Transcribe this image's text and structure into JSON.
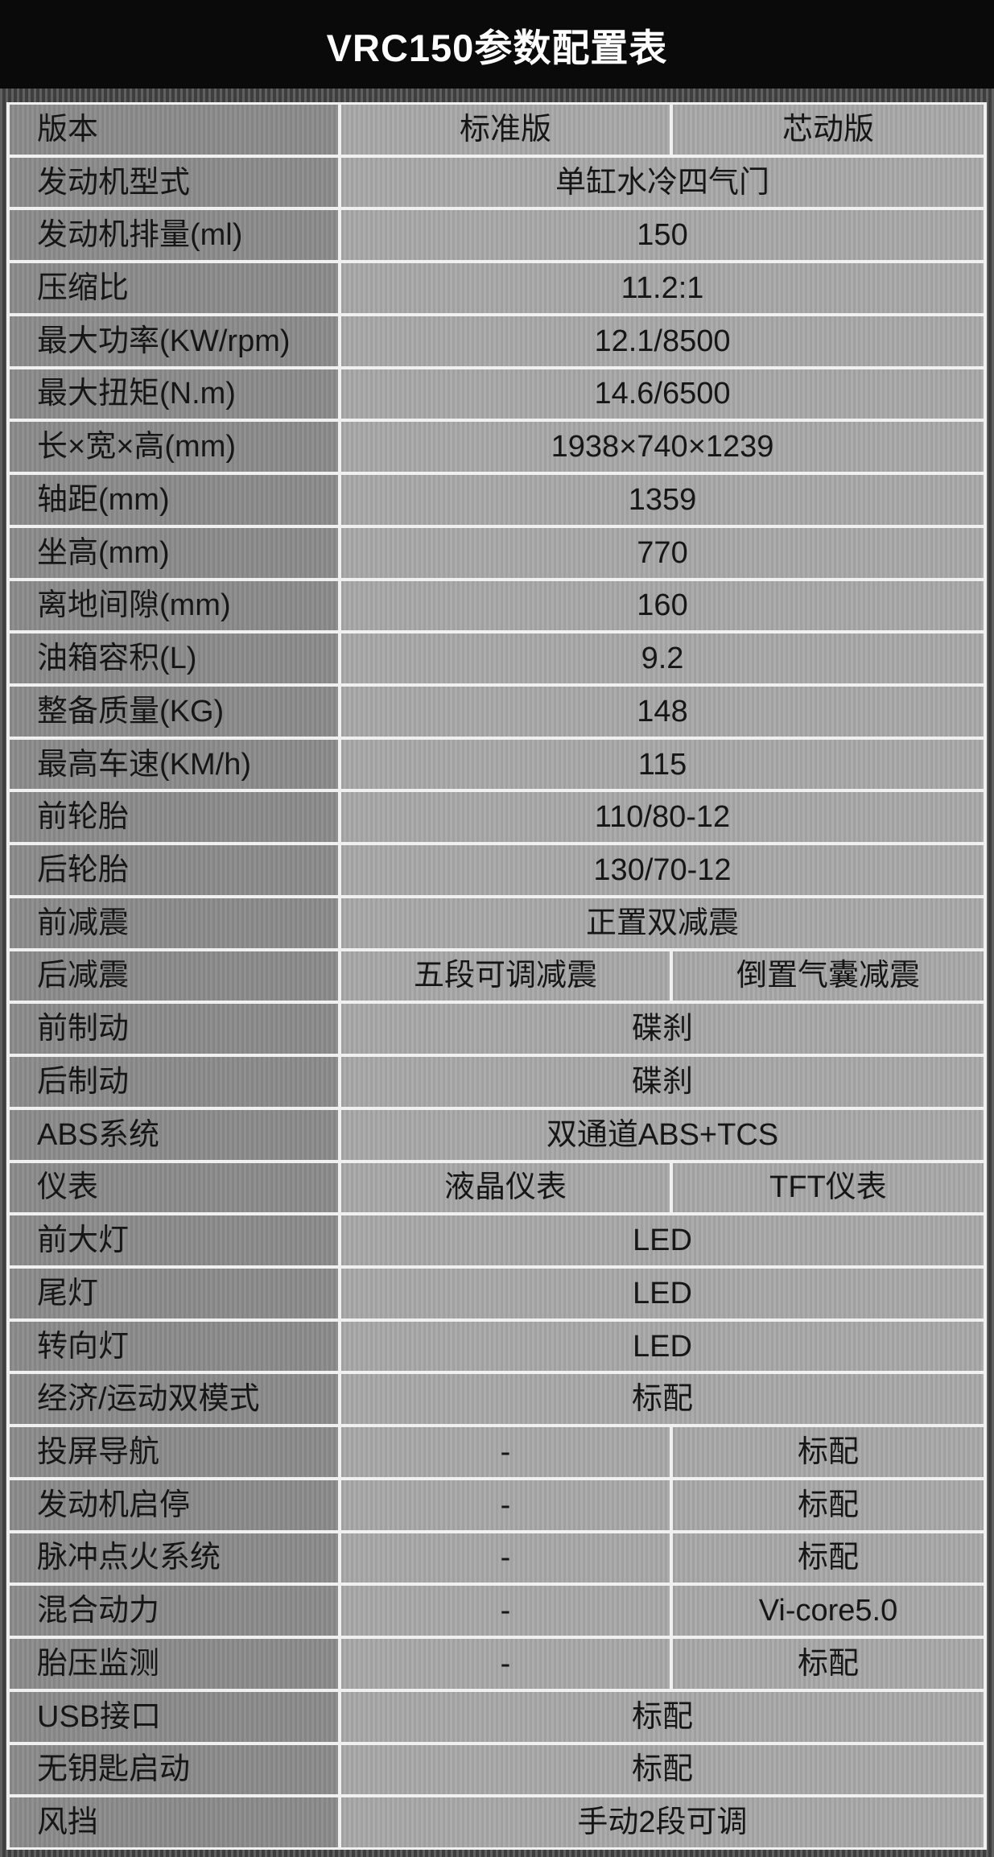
{
  "header": {
    "title": "VRC150参数配置表"
  },
  "colors": {
    "header_bg": "#0a0a0a",
    "header_text": "#ffffff",
    "frame_bg": "#4e4e4e",
    "label_cell_bg": "#8c8c8c",
    "value_cell_bg": "#a9a9a9",
    "separator": "#f0f0f0",
    "text": "#161616"
  },
  "table": {
    "variant_columns": [
      "标准版",
      "芯动版"
    ],
    "rows": [
      {
        "label": "版本",
        "values": [
          "标准版",
          "芯动版"
        ]
      },
      {
        "label": "发动机型式",
        "value": "单缸水冷四气门"
      },
      {
        "label": "发动机排量(ml)",
        "value": "150"
      },
      {
        "label": "压缩比",
        "value": "11.2:1"
      },
      {
        "label": "最大功率(KW/rpm)",
        "value": "12.1/8500"
      },
      {
        "label": "最大扭矩(N.m)",
        "value": "14.6/6500"
      },
      {
        "label": "长×宽×高(mm)",
        "value": "1938×740×1239"
      },
      {
        "label": "轴距(mm)",
        "value": "1359"
      },
      {
        "label": "坐高(mm)",
        "value": "770"
      },
      {
        "label": "离地间隙(mm)",
        "value": "160"
      },
      {
        "label": "油箱容积(L)",
        "value": "9.2"
      },
      {
        "label": "整备质量(KG)",
        "value": "148"
      },
      {
        "label": "最高车速(KM/h)",
        "value": "115"
      },
      {
        "label": "前轮胎",
        "value": "110/80-12"
      },
      {
        "label": "后轮胎",
        "value": "130/70-12"
      },
      {
        "label": "前减震",
        "value": "正置双减震"
      },
      {
        "label": "后减震",
        "values": [
          "五段可调减震",
          "倒置气囊减震"
        ]
      },
      {
        "label": "前制动",
        "value": "碟刹"
      },
      {
        "label": "后制动",
        "value": "碟刹"
      },
      {
        "label": "ABS系统",
        "value": "双通道ABS+TCS"
      },
      {
        "label": "仪表",
        "values": [
          "液晶仪表",
          "TFT仪表"
        ]
      },
      {
        "label": "前大灯",
        "value": "LED"
      },
      {
        "label": "尾灯",
        "value": "LED"
      },
      {
        "label": "转向灯",
        "value": "LED"
      },
      {
        "label": "经济/运动双模式",
        "value": "标配"
      },
      {
        "label": "投屏导航",
        "values": [
          "-",
          "标配"
        ]
      },
      {
        "label": "发动机启停",
        "values": [
          "-",
          "标配"
        ]
      },
      {
        "label": "脉冲点火系统",
        "values": [
          "-",
          "标配"
        ]
      },
      {
        "label": "混合动力",
        "values": [
          "-",
          "Vi-core5.0"
        ]
      },
      {
        "label": "胎压监测",
        "values": [
          "-",
          "标配"
        ]
      },
      {
        "label": "USB接口",
        "value": "标配"
      },
      {
        "label": "无钥匙启动",
        "value": "标配"
      },
      {
        "label": "风挡",
        "value": "手动2段可调"
      }
    ]
  }
}
